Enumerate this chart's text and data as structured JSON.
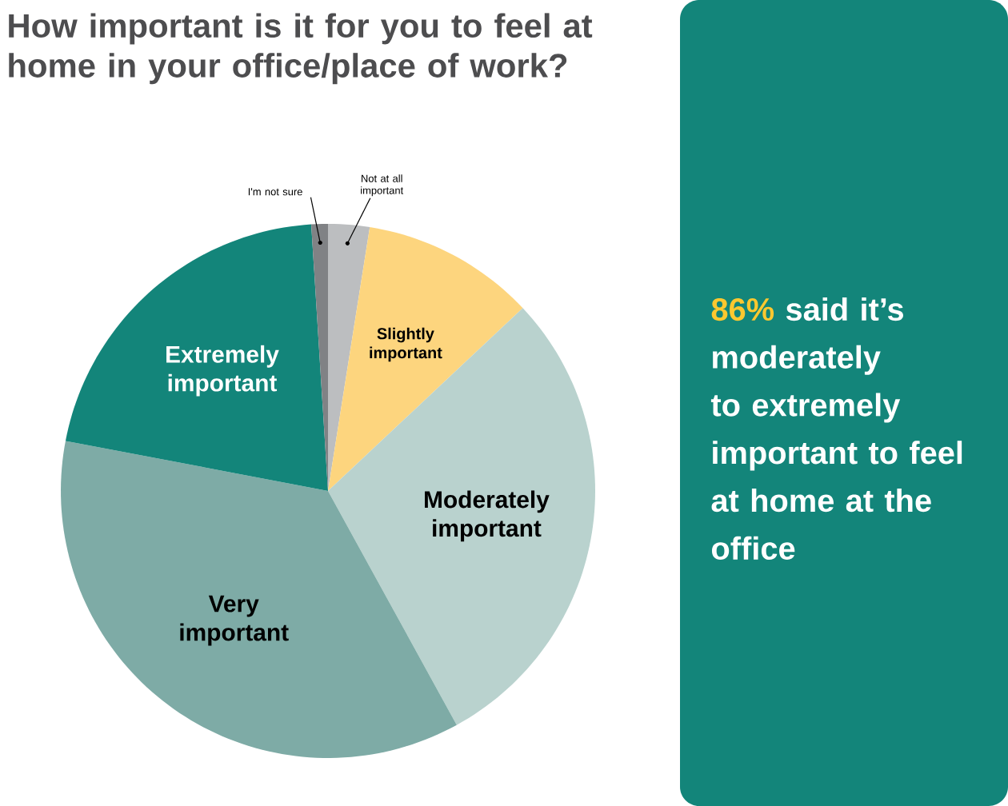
{
  "chart_data": {
    "type": "pie",
    "title": "How important is it for you to feel at home in your office/place of work?",
    "categories": [
      "Not at all important",
      "Slightly important",
      "Moderately important",
      "Very important",
      "Extremely important",
      "I'm not sure"
    ],
    "values": [
      2.5,
      10.5,
      29,
      36,
      21,
      1
    ],
    "colors": [
      "#bcbec0",
      "#fdd57e",
      "#b9d2ce",
      "#7eaba6",
      "#13857a",
      "#808285"
    ],
    "annotations": [
      "86%",
      "said it’s moderately to extremely important to feel at home at the office"
    ],
    "legend": false
  }
}
